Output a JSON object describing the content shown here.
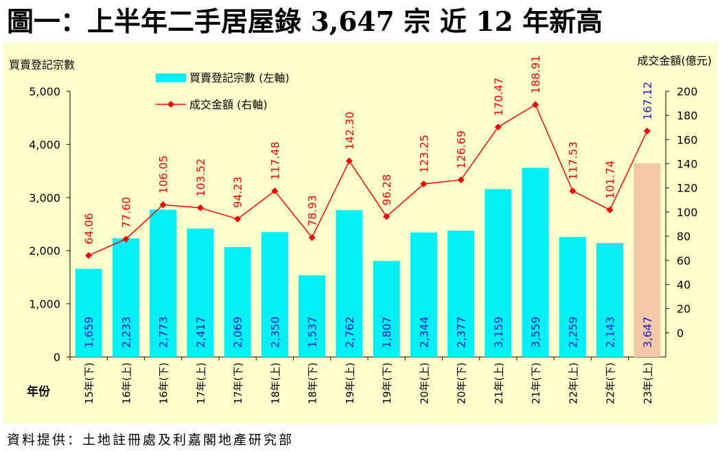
{
  "title": "圖一：上半年二手居屋錄 3,647 宗 近 12 年新高",
  "footer": "資料提供：土地註冊處及利嘉閣地產研究部",
  "chart_data": {
    "type": "bar",
    "categories": [
      "15年(下)",
      "16年(上)",
      "16年(下)",
      "17年(上)",
      "17年(下)",
      "18年(上)",
      "18年(下)",
      "19年(上)",
      "19年(下)",
      "20年(上)",
      "20年(下)",
      "21年(上)",
      "21年(下)",
      "22年(上)",
      "22年(下)",
      "23年(上)"
    ],
    "x_axis_title": "年份",
    "left_axis": {
      "label": "買賣登記宗數",
      "min": 0,
      "max": 5000,
      "ticks": [
        "0",
        "1,000",
        "2,000",
        "3,000",
        "4,000",
        "5,000"
      ]
    },
    "right_axis": {
      "label": "成交金額(億元)",
      "min": -20,
      "max": 200,
      "ticks": [
        "0",
        "20",
        "40",
        "60",
        "80",
        "100",
        "120",
        "140",
        "160",
        "180",
        "200"
      ]
    },
    "series": [
      {
        "name": "買賣登記宗數 (左軸)",
        "type": "bar",
        "axis": "left",
        "values": [
          1659,
          2233,
          2773,
          2417,
          2069,
          2350,
          1537,
          2762,
          1807,
          2344,
          2377,
          3159,
          3559,
          2259,
          2143,
          3647
        ],
        "labels": [
          "1,659",
          "2,233",
          "2,773",
          "2,417",
          "2,069",
          "2,350",
          "1,537",
          "2,762",
          "1,807",
          "2,344",
          "2,377",
          "3,159",
          "3,559",
          "2,259",
          "2,143",
          "3,647"
        ]
      },
      {
        "name": "成交金額 (右軸)",
        "type": "line",
        "axis": "right",
        "values": [
          64.06,
          77.6,
          106.05,
          103.52,
          94.23,
          117.48,
          78.93,
          142.3,
          96.28,
          123.25,
          126.69,
          170.47,
          188.91,
          117.53,
          101.74,
          167.12
        ],
        "labels": [
          "64.06",
          "77.60",
          "106.05",
          "103.52",
          "94.23",
          "117.48",
          "78.93",
          "142.30",
          "96.28",
          "123.25",
          "126.69",
          "170.47",
          "188.91",
          "117.53",
          "101.74",
          "167.12"
        ]
      }
    ],
    "colors": {
      "background": "#ffffcc",
      "bar": "#00f0f5",
      "bar_highlight": "#f5c8a8",
      "line": "#ff0000",
      "label_highlight": "#1a1ad0",
      "bar_label": "#1a1ad0",
      "line_label": "#ff0000"
    }
  }
}
